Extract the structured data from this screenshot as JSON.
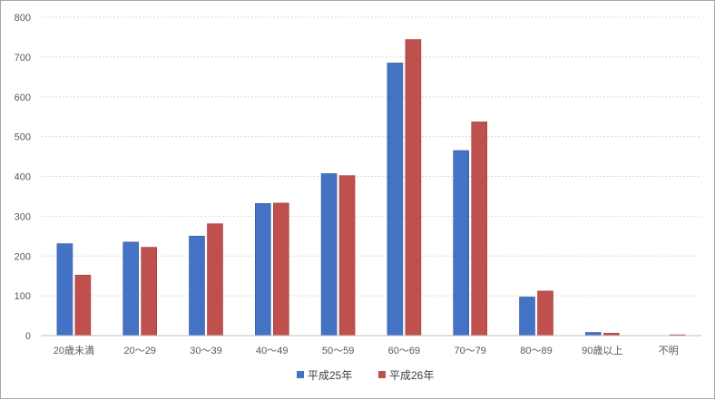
{
  "chart_data": {
    "type": "bar",
    "categories": [
      "20歳未満",
      "20～29",
      "30～39",
      "40～49",
      "50～59",
      "60～69",
      "70～79",
      "80～89",
      "90歳以上",
      "不明"
    ],
    "series": [
      {
        "name": "平成25年",
        "color": "#4472c4",
        "values": [
          231,
          235,
          250,
          332,
          407,
          685,
          465,
          97,
          8,
          0
        ]
      },
      {
        "name": "平成26年",
        "color": "#c0504d",
        "values": [
          152,
          222,
          281,
          333,
          402,
          744,
          537,
          112,
          6,
          2
        ]
      }
    ],
    "title": "",
    "xlabel": "",
    "ylabel": "",
    "ylim": [
      0,
      800
    ],
    "yticks": [
      0,
      100,
      200,
      300,
      400,
      500,
      600,
      700,
      800
    ],
    "grid": true,
    "legend_position": "bottom"
  }
}
